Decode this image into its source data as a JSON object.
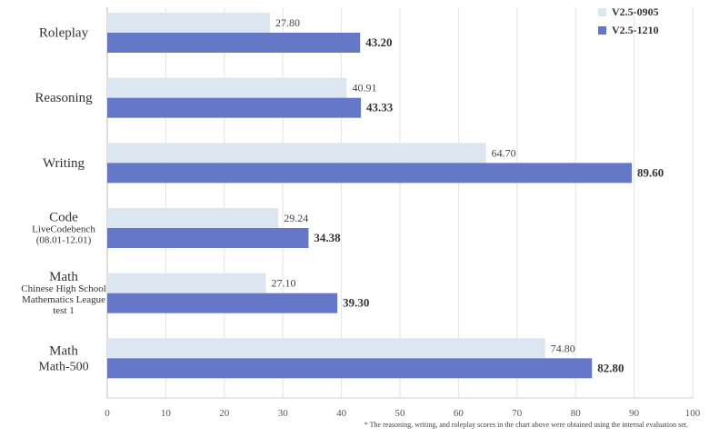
{
  "chart_data": {
    "type": "bar",
    "orientation": "horizontal",
    "categories": [
      {
        "label": "Roleplay",
        "sublabel": []
      },
      {
        "label": "Reasoning",
        "sublabel": []
      },
      {
        "label": "Writing",
        "sublabel": []
      },
      {
        "label": "Code",
        "sublabel": [
          "LiveCodebench",
          "(08.01-12.01)"
        ]
      },
      {
        "label": "Math",
        "sublabel": [
          "Chinese High School",
          "Mathematics League",
          "test 1"
        ]
      },
      {
        "label": "Math",
        "sublabel": [
          "Math-500"
        ]
      }
    ],
    "series": [
      {
        "name": "V2.5-0905",
        "color": "#dce6f1",
        "values": [
          27.8,
          40.91,
          64.7,
          29.24,
          27.1,
          74.8
        ],
        "labels": [
          "27.80",
          "40.91",
          "64.70",
          "29.24",
          "27.10",
          "74.80"
        ]
      },
      {
        "name": "V2.5-1210",
        "color": "#6578c8",
        "values": [
          43.2,
          43.33,
          89.6,
          34.38,
          39.3,
          82.8
        ],
        "labels": [
          "43.20",
          "43.33",
          "89.60",
          "34.38",
          "39.30",
          "82.80"
        ]
      }
    ],
    "xlim": [
      0,
      100
    ],
    "xticks": [
      "0",
      "10",
      "20",
      "30",
      "40",
      "50",
      "60",
      "70",
      "80",
      "90",
      "100"
    ],
    "grid": true,
    "legend_position": "top-right",
    "footnote": "* The reasoning, writing, and roleplay scores in the chart above were obtained using the internal evaluation set."
  }
}
